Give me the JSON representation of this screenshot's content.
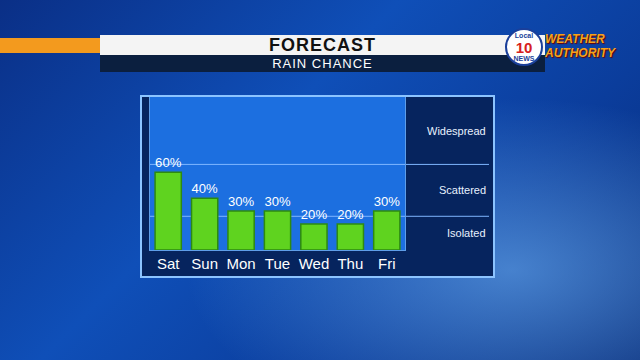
{
  "chart_data": {
    "type": "bar",
    "title": "FORECAST",
    "subtitle": "RAIN CHANCE",
    "categories": [
      "Sat",
      "Sun",
      "Mon",
      "Tue",
      "Wed",
      "Thu",
      "Fri"
    ],
    "values": [
      60,
      40,
      30,
      30,
      20,
      20,
      30
    ],
    "value_labels": [
      "60%",
      "40%",
      "30%",
      "30%",
      "20%",
      "20%",
      "30%"
    ],
    "data_labels": true,
    "color": "#5fd31f",
    "ylim": [
      0,
      118
    ],
    "tick_labels": "x",
    "grid": false,
    "bands": [
      {
        "label": "Isolated",
        "from": 0,
        "to": 26
      },
      {
        "label": "Scattered",
        "from": 26,
        "to": 66
      },
      {
        "label": "Widespread",
        "from": 66,
        "to": 118
      }
    ]
  },
  "logo": {
    "top": "Local",
    "number": "10",
    "bottom": "NEWS",
    "brand": "WEATHER AUTHORITY"
  }
}
